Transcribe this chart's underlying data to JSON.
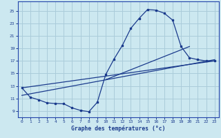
{
  "xlabel": "Graphe des températures (°c)",
  "bg_color": "#cce8f0",
  "grid_color": "#aaccda",
  "line_color": "#1a3a8c",
  "spine_color": "#2244aa",
  "xlim": [
    -0.5,
    23.5
  ],
  "ylim": [
    8.0,
    26.5
  ],
  "xticks": [
    0,
    1,
    2,
    3,
    4,
    5,
    6,
    7,
    8,
    9,
    10,
    11,
    12,
    13,
    14,
    15,
    16,
    17,
    18,
    19,
    20,
    21,
    22,
    23
  ],
  "yticks": [
    9,
    11,
    13,
    15,
    17,
    19,
    21,
    23,
    25
  ],
  "curve1_x": [
    0,
    1,
    2,
    3,
    4,
    5,
    6,
    7,
    8,
    9,
    10,
    11,
    12,
    13,
    14,
    15,
    16,
    17,
    18,
    19,
    20,
    21,
    22,
    23
  ],
  "curve1_y": [
    12.7,
    11.2,
    10.8,
    10.3,
    10.2,
    10.15,
    9.5,
    9.1,
    8.9,
    10.4,
    14.8,
    17.3,
    19.5,
    22.2,
    23.8,
    25.2,
    25.1,
    24.6,
    23.5,
    19.3,
    17.5,
    17.2,
    17.0,
    17.0
  ],
  "curve2_x": [
    0,
    23
  ],
  "curve2_y": [
    11.5,
    17.2
  ],
  "curve3_x": [
    0,
    23
  ],
  "curve3_y": [
    12.7,
    17.0
  ],
  "curve4_x": [
    10,
    20
  ],
  "curve4_y": [
    14.0,
    19.3
  ]
}
